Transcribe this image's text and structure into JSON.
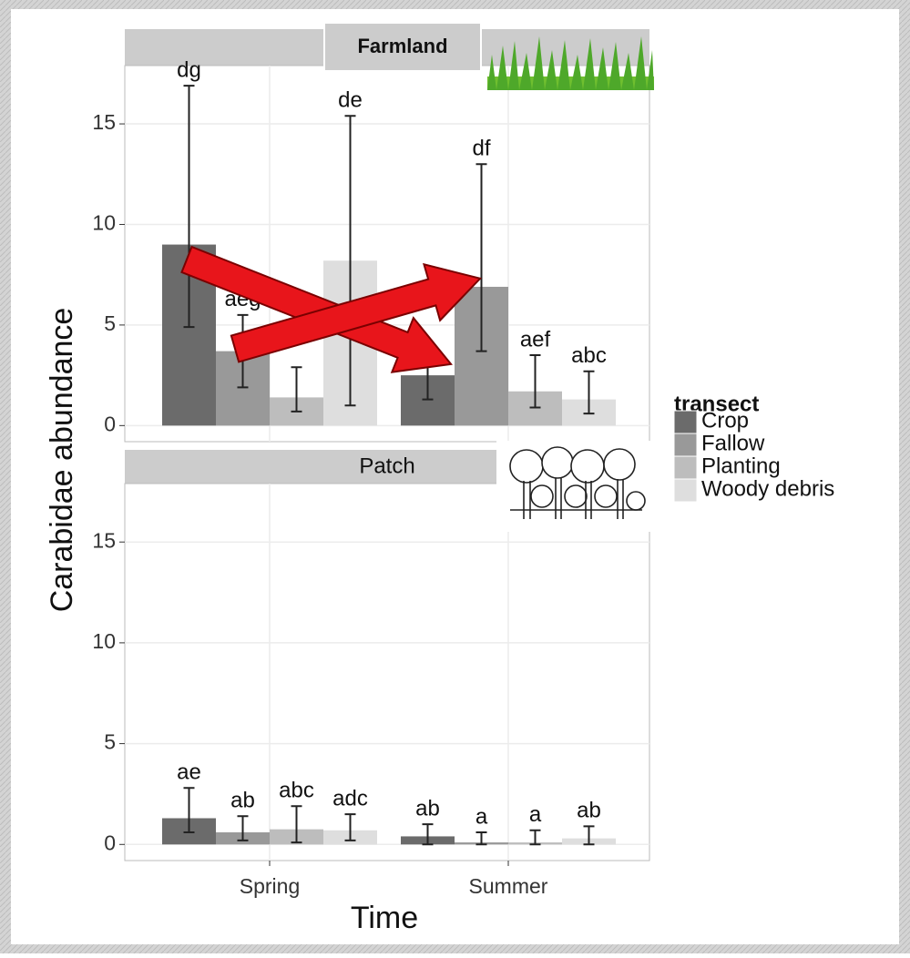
{
  "chart_data": {
    "type": "bar",
    "x_label": "Time",
    "y_label": "Carabidae abundance",
    "legend_title": "transect",
    "categories": [
      "Spring",
      "Summer"
    ],
    "ylim": [
      -0.8,
      17.9
    ],
    "yticks": [
      0,
      5,
      10,
      15
    ],
    "grid": true,
    "series": [
      {
        "name": "Crop",
        "color": "#6b6b6b"
      },
      {
        "name": "Fallow",
        "color": "#999999"
      },
      {
        "name": "Planting",
        "color": "#bdbdbd"
      },
      {
        "name": "Woody debris",
        "color": "#dedede"
      }
    ],
    "panels": [
      {
        "title": "Farmland",
        "series": [
          {
            "values": [
              9.0,
              2.5
            ],
            "lower": [
              4.9,
              1.3
            ],
            "upper": [
              16.9,
              4.0
            ],
            "letters": [
              "dg",
              null
            ]
          },
          {
            "values": [
              3.7,
              6.9
            ],
            "lower": [
              1.9,
              3.7
            ],
            "upper": [
              5.5,
              13.0
            ],
            "letters": [
              "aeg",
              "df"
            ]
          },
          {
            "values": [
              1.4,
              1.7
            ],
            "lower": [
              0.7,
              0.9
            ],
            "upper": [
              2.9,
              3.5
            ],
            "letters": [
              null,
              "aef"
            ]
          },
          {
            "values": [
              8.2,
              1.3
            ],
            "lower": [
              1.0,
              0.6
            ],
            "upper": [
              15.4,
              2.7
            ],
            "letters": [
              "de",
              "abc"
            ]
          }
        ]
      },
      {
        "title": "Patch",
        "series": [
          {
            "values": [
              1.3,
              0.4
            ],
            "lower": [
              0.6,
              0.0
            ],
            "upper": [
              2.8,
              1.0
            ],
            "letters": [
              "ae",
              "ab"
            ]
          },
          {
            "values": [
              0.6,
              0.1
            ],
            "lower": [
              0.2,
              0.0
            ],
            "upper": [
              1.4,
              0.6
            ],
            "letters": [
              "ab",
              "a"
            ]
          },
          {
            "values": [
              0.75,
              0.1
            ],
            "lower": [
              0.1,
              0.0
            ],
            "upper": [
              1.9,
              0.7
            ],
            "letters": [
              "abc",
              "a"
            ]
          },
          {
            "values": [
              0.7,
              0.3
            ],
            "lower": [
              0.2,
              0.0
            ],
            "upper": [
              1.5,
              0.9
            ],
            "letters": [
              "adc",
              "ab"
            ]
          }
        ]
      }
    ]
  }
}
